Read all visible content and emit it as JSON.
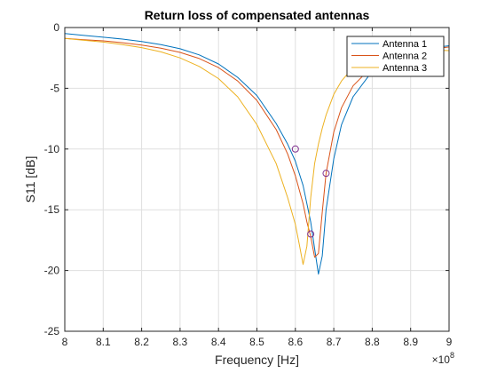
{
  "chart_data": {
    "type": "line",
    "title": "Return loss of compensated antennas",
    "xlabel": "Frequency [Hz]",
    "ylabel": "S11 [dB]",
    "x_exponent_base": "×10",
    "x_exponent_power": "8",
    "xlim": [
      8.0,
      9.0
    ],
    "ylim": [
      -25,
      0
    ],
    "x_ticks": [
      8.0,
      8.1,
      8.2,
      8.3,
      8.4,
      8.5,
      8.6,
      8.7,
      8.8,
      8.9,
      9.0
    ],
    "x_tick_labels": [
      "8",
      "8.1",
      "8.2",
      "8.3",
      "8.4",
      "8.5",
      "8.6",
      "8.7",
      "8.8",
      "8.9",
      "9"
    ],
    "y_ticks": [
      0,
      -5,
      -10,
      -15,
      -20,
      -25
    ],
    "y_tick_labels": [
      "0",
      "-5",
      "-10",
      "-15",
      "-20",
      "-25"
    ],
    "grid": true,
    "legend_position": "top-right",
    "series": [
      {
        "name": "Antenna 1",
        "color": "#0072BD",
        "x": [
          8.0,
          8.05,
          8.1,
          8.15,
          8.2,
          8.25,
          8.3,
          8.35,
          8.4,
          8.45,
          8.5,
          8.55,
          8.58,
          8.6,
          8.62,
          8.64,
          8.65,
          8.66,
          8.67,
          8.68,
          8.7,
          8.72,
          8.75,
          8.8,
          8.85,
          8.9,
          9.0
        ],
        "y": [
          -0.5,
          -0.65,
          -0.8,
          -0.95,
          -1.15,
          -1.4,
          -1.75,
          -2.25,
          -3.0,
          -4.1,
          -5.6,
          -7.9,
          -9.6,
          -11.0,
          -13.0,
          -16.0,
          -18.2,
          -20.3,
          -18.8,
          -15.0,
          -10.8,
          -8.0,
          -5.7,
          -3.6,
          -2.5,
          -1.9,
          -1.5
        ]
      },
      {
        "name": "Antenna 2",
        "color": "#D95319",
        "x": [
          8.0,
          8.05,
          8.1,
          8.15,
          8.2,
          8.25,
          8.3,
          8.35,
          8.4,
          8.45,
          8.5,
          8.55,
          8.58,
          8.6,
          8.62,
          8.63,
          8.64,
          8.65,
          8.66,
          8.67,
          8.68,
          8.7,
          8.72,
          8.75,
          8.8,
          8.85,
          8.9,
          9.0
        ],
        "y": [
          -0.9,
          -1.0,
          -1.1,
          -1.25,
          -1.45,
          -1.7,
          -2.05,
          -2.55,
          -3.3,
          -4.4,
          -6.0,
          -8.4,
          -10.4,
          -12.2,
          -14.5,
          -16.0,
          -17.2,
          -18.9,
          -18.6,
          -15.2,
          -12.0,
          -8.6,
          -6.6,
          -4.8,
          -3.2,
          -2.5,
          -2.0,
          -1.6
        ]
      },
      {
        "name": "Antenna 3",
        "color": "#EDB120",
        "x": [
          8.0,
          8.05,
          8.1,
          8.15,
          8.2,
          8.25,
          8.3,
          8.35,
          8.4,
          8.45,
          8.5,
          8.55,
          8.58,
          8.6,
          8.61,
          8.62,
          8.63,
          8.64,
          8.65,
          8.66,
          8.67,
          8.68,
          8.7,
          8.72,
          8.75,
          8.8,
          8.85,
          8.9,
          9.0
        ],
        "y": [
          -0.9,
          -1.05,
          -1.2,
          -1.4,
          -1.65,
          -2.0,
          -2.5,
          -3.2,
          -4.2,
          -5.7,
          -8.0,
          -11.2,
          -14.0,
          -16.2,
          -17.8,
          -19.5,
          -18.0,
          -14.0,
          -11.2,
          -9.6,
          -8.3,
          -7.2,
          -5.5,
          -4.4,
          -3.3,
          -2.4,
          -2.0,
          -1.8,
          -1.9
        ]
      }
    ],
    "markers": [
      {
        "x": 8.6,
        "y": -10.0,
        "color": "#7E2F8E"
      },
      {
        "x": 8.64,
        "y": -17.0,
        "color": "#7E2F8E"
      },
      {
        "x": 8.68,
        "y": -12.0,
        "color": "#7E2F8E"
      }
    ]
  }
}
